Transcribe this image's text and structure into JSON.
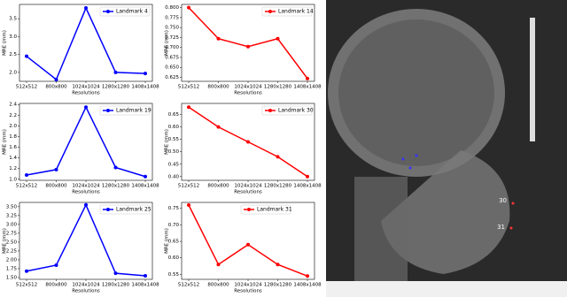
{
  "chart_data": [
    {
      "type": "line",
      "categories": [
        "512x512",
        "800x800",
        "1024x1024",
        "1280x1280",
        "1408x1408"
      ],
      "xlabel": "Resolutions",
      "ylabel": "MRE (mm)",
      "legend": "upper right",
      "series": [
        {
          "name": "Landmark 4",
          "color": "#0000ff",
          "values": [
            2.45,
            1.8,
            3.8,
            2.0,
            1.97
          ]
        }
      ],
      "ylim": [
        1.75,
        3.9
      ],
      "yticks": [
        {
          "value": 2.0,
          "label": "2.0"
        },
        2.5,
        {
          "value": 3.0,
          "label": "3.0"
        },
        3.5
      ]
    },
    {
      "type": "line",
      "categories": [
        "512x512",
        "800x800",
        "1024x1024",
        "1280x1280",
        "1408x1408"
      ],
      "xlabel": "Resolutions",
      "ylabel": "MRE (mm)",
      "legend": "upper right",
      "series": [
        {
          "name": "Landmark 14",
          "color": "#ff0000",
          "values": [
            0.8,
            0.722,
            0.702,
            0.722,
            0.622
          ]
        }
      ],
      "ylim": [
        0.615,
        0.808
      ],
      "yticks": [
        0.625,
        {
          "value": 0.65,
          "label": "0.650"
        },
        0.675,
        {
          "value": 0.7,
          "label": "0.700"
        },
        0.725,
        {
          "value": 0.75,
          "label": "0.750"
        },
        0.775,
        {
          "value": 0.8,
          "label": "0.800"
        }
      ]
    },
    {
      "type": "line",
      "categories": [
        "512x512",
        "800x800",
        "1024x1024",
        "1280x1280",
        "1408x1408"
      ],
      "xlabel": "Resolutions",
      "ylabel": "MRE (mm)",
      "legend": "upper right",
      "series": [
        {
          "name": "Landmark 19",
          "color": "#0000ff",
          "values": [
            1.08,
            1.18,
            2.35,
            1.22,
            1.05
          ]
        }
      ],
      "ylim": [
        0.98,
        2.42
      ],
      "yticks": [
        {
          "value": 1.0,
          "label": "1.0"
        },
        1.2,
        1.4,
        1.6,
        1.8,
        {
          "value": 2.0,
          "label": "2.0"
        },
        2.2,
        2.4
      ]
    },
    {
      "type": "line",
      "categories": [
        "512x512",
        "800x800",
        "1024x1024",
        "1280x1280",
        "1408x1408"
      ],
      "xlabel": "Resolutions",
      "ylabel": "MRE (mm)",
      "legend": "upper right",
      "series": [
        {
          "name": "Landmark 30",
          "color": "#ff0000",
          "values": [
            0.68,
            0.6,
            0.54,
            0.48,
            0.4
          ]
        }
      ],
      "ylim": [
        0.385,
        0.695
      ],
      "yticks": [
        {
          "value": 0.4,
          "label": "0.40"
        },
        0.45,
        {
          "value": 0.5,
          "label": "0.50"
        },
        0.55,
        {
          "value": 0.6,
          "label": "0.60"
        },
        0.65
      ]
    },
    {
      "type": "line",
      "categories": [
        "512x512",
        "800x800",
        "1024x1024",
        "1280x1280",
        "1408x1408"
      ],
      "xlabel": "Resolutions",
      "ylabel": "MRE (mm)",
      "legend": "upper right",
      "series": [
        {
          "name": "Landmark 25",
          "color": "#0000ff",
          "values": [
            1.68,
            1.85,
            3.55,
            1.62,
            1.55
          ]
        }
      ],
      "ylim": [
        1.45,
        3.62
      ],
      "yticks": [
        {
          "value": 1.5,
          "label": "1.50"
        },
        1.75,
        {
          "value": 2.0,
          "label": "2.00"
        },
        2.25,
        {
          "value": 2.5,
          "label": "2.50"
        },
        2.75,
        {
          "value": 3.0,
          "label": "3.00"
        },
        3.25,
        {
          "value": 3.5,
          "label": "3.50"
        }
      ]
    },
    {
      "type": "line",
      "categories": [
        "512x512",
        "800x800",
        "1024x1024",
        "1280x1280",
        "1408x1408"
      ],
      "xlabel": "Resolutions",
      "ylabel": "MRE (mm)",
      "legend": "upper center",
      "series": [
        {
          "name": "Landmark 31",
          "color": "#ff0000",
          "values": [
            0.76,
            0.58,
            0.64,
            0.58,
            0.545
          ]
        }
      ],
      "ylim": [
        0.535,
        0.768
      ],
      "yticks": [
        0.55,
        {
          "value": 0.6,
          "label": "0.60"
        },
        0.65,
        {
          "value": 0.7,
          "label": "0.70"
        },
        0.75
      ]
    }
  ],
  "image": {
    "labels": [
      "30",
      "31"
    ]
  }
}
